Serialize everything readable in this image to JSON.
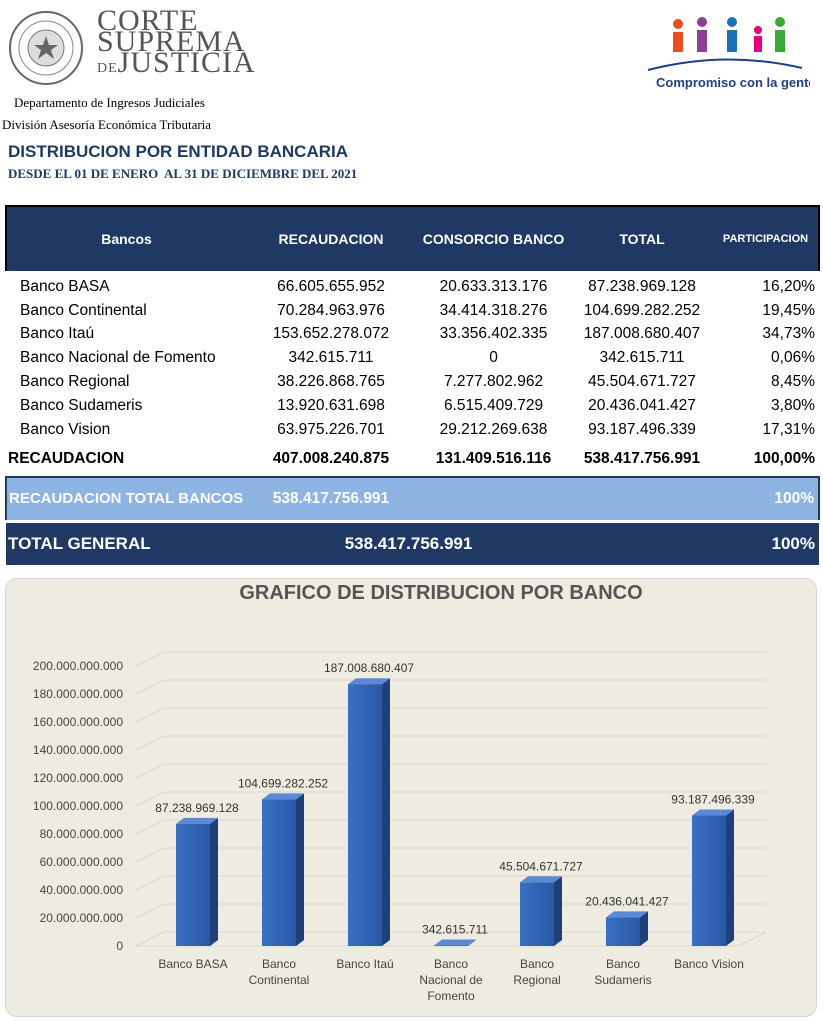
{
  "header": {
    "org_name": [
      "CORTE",
      "SUPREMA",
      "DE",
      "JUSTICIA"
    ],
    "slogan": "Compromiso con la gente",
    "department": "Departamento de Ingresos Judiciales",
    "division": "División Asesoría Económica Tributaria",
    "title": "DISTRIBUCION POR ENTIDAD BANCARIA",
    "subtitle": "DESDE EL 01 DE ENERO  AL 31 DE DICIEMBRE DEL 2021"
  },
  "table": {
    "columns": [
      "Bancos",
      "RECAUDACION",
      "CONSORCIO BANCO",
      "TOTAL",
      "PARTICIPACION"
    ],
    "rows": [
      [
        "Banco BASA",
        "66.605.655.952",
        "20.633.313.176",
        "87.238.969.128",
        "16,20%"
      ],
      [
        "Banco Continental",
        "70.284.963.976",
        "34.414.318.276",
        "104.699.282.252",
        "19,45%"
      ],
      [
        "Banco Itaú",
        "153.652.278.072",
        "33.356.402.335",
        "187.008.680.407",
        "34,73%"
      ],
      [
        "Banco Nacional de Fomento",
        "342.615.711",
        "0",
        "342.615.711",
        "0,06%"
      ],
      [
        "Banco Regional",
        "38.226.868.765",
        "7.277.802.962",
        "45.504.671.727",
        "8,45%"
      ],
      [
        "Banco Sudameris",
        "13.920.631.698",
        "6.515.409.729",
        "20.436.041.427",
        "3,80%"
      ],
      [
        "Banco Vision",
        "63.975.226.701",
        "29.212.269.638",
        "93.187.496.339",
        "17,31%"
      ]
    ],
    "total_row": [
      "RECAUDACION",
      "407.008.240.875",
      "131.409.516.116",
      "538.417.756.991",
      "100,00%"
    ],
    "banks_total": [
      "RECAUDACION TOTAL BANCOS",
      "538.417.756.991",
      "100%"
    ],
    "general_total": [
      "TOTAL GENERAL",
      "538.417.756.991",
      "100%"
    ]
  },
  "chart_data": {
    "type": "bar",
    "title": "GRAFICO DE DISTRIBUCION POR BANCO",
    "categories": [
      "Banco BASA",
      "Banco Continental",
      "Banco Itaú",
      "Banco Nacional de Fomento",
      "Banco Regional",
      "Banco Sudameris",
      "Banco Vision"
    ],
    "values": [
      87238969128,
      104699282252,
      187008680407,
      342615711,
      45504671727,
      20436041427,
      93187496339
    ],
    "value_labels": [
      "87.238.969.128",
      "104.699.282.252",
      "187.008.680.407",
      "342.615.711",
      "45.504.671.727",
      "20.436.041.427",
      "93.187.496.339"
    ],
    "color": "#3a70c4",
    "ylim": [
      0,
      200000000000
    ],
    "yticks": [
      0,
      {
        "value": 20000000000,
        "label": "20.000.000.000"
      },
      {
        "value": 40000000000,
        "label": "40.000.000.000"
      },
      {
        "value": 60000000000,
        "label": "60.000.000.000"
      },
      {
        "value": 80000000000,
        "label": "80.000.000.000"
      },
      {
        "value": 100000000000,
        "label": "100.000.000.000"
      },
      {
        "value": 120000000000,
        "label": "120.000.000.000"
      },
      {
        "value": 140000000000,
        "label": "140.000.000.000"
      },
      {
        "value": 160000000000,
        "label": "160.000.000.000"
      },
      {
        "value": 180000000000,
        "label": "180.000.000.000"
      },
      {
        "value": 200000000000,
        "label": "200.000.000.000"
      }
    ],
    "grid": true
  }
}
